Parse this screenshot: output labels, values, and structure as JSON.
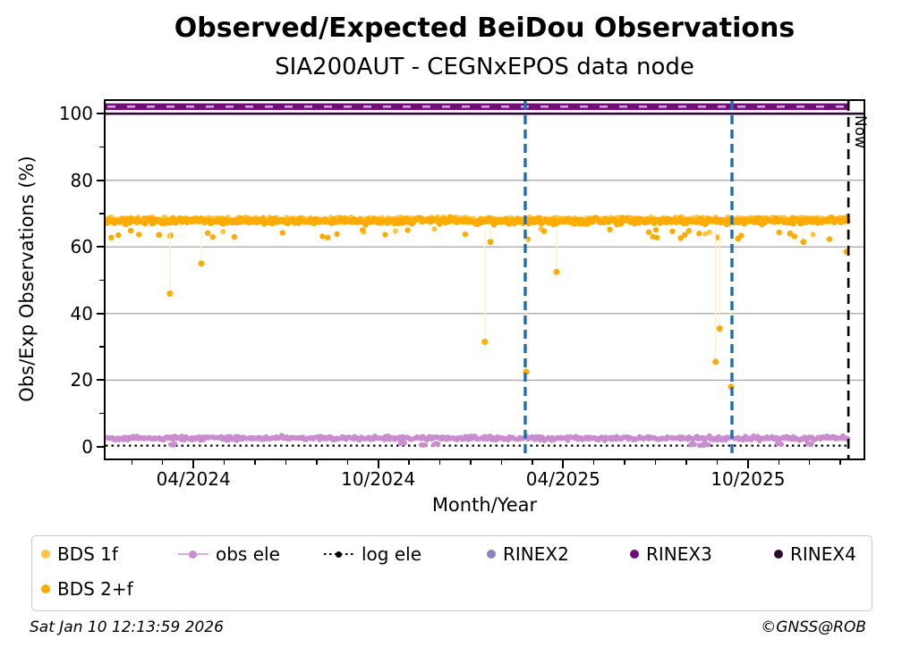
{
  "header": {
    "title": "Observed/Expected BeiDou Observations",
    "subtitle": "SIA200AUT - CEGNxEPOS data node"
  },
  "footer": {
    "timestamp": "Sat Jan 10 12:13:59 2026",
    "credit": "©GNSS@ROB"
  },
  "now_label": "Now",
  "colors": {
    "bds_1f": "#FFC540",
    "bds_2f": "#FFAB00",
    "obs_ele": "#C88CCF",
    "log_ele": "#000000",
    "rinex2": "#8C82C6",
    "rinex2_dash": "#CFA3D6",
    "rinex3": "#730B78",
    "rinex4": "#2E0A30",
    "event_line": "#1D6EB5",
    "now_line": "#000000",
    "grid": "#ABABAB",
    "dropline": "#FFEFC4"
  },
  "chart_data": {
    "type": "scatter",
    "title": "Observed/Expected BeiDou Observations",
    "subtitle": "SIA200AUT - CEGNxEPOS data node",
    "xlabel": "Month/Year",
    "ylabel": "Obs/Exp Observations (%)",
    "x_unit": "months since 2024-01-01",
    "xlim": [
      0.15,
      24.75
    ],
    "ylim": [
      -3.5,
      103.8
    ],
    "grid": "horizontal-only",
    "grid_y_values": [
      20,
      40,
      60,
      80
    ],
    "y_major_ticks": [
      0,
      20,
      40,
      60,
      80,
      100
    ],
    "y_tick_labels": [
      "0",
      "20",
      "40",
      "60",
      "80",
      "100"
    ],
    "y_minor_ticks": [
      10,
      30,
      50,
      70,
      90
    ],
    "x_major_ticks": [
      {
        "t": 3,
        "label": "04/2024"
      },
      {
        "t": 9,
        "label": "10/2024"
      },
      {
        "t": 15,
        "label": "04/2025"
      },
      {
        "t": 21,
        "label": "10/2025"
      }
    ],
    "x_minor_tick_step_months": 1,
    "now_line_t": 24.26,
    "event_lines_t": [
      13.77,
      20.48
    ],
    "legend_position": "below",
    "series": [
      {
        "name": "BDS 1f",
        "kind": "scatter-band",
        "color_key": "bds_1f",
        "range_t": [
          0.2,
          24.26
        ],
        "band_mean": 68.2,
        "band_spread": 1.1,
        "low_straggler_rate": 0.02
      },
      {
        "name": "BDS 2+f",
        "kind": "scatter-band",
        "color_key": "bds_2f",
        "range_t": [
          0.2,
          24.26
        ],
        "band_mean": 67.8,
        "band_spread": 1.3,
        "low_straggler_rate": 0.045,
        "outliers_t_value": [
          [
            2.24,
            46.0
          ],
          [
            3.26,
            55.0
          ],
          [
            12.46,
            31.5
          ],
          [
            12.64,
            61.5
          ],
          [
            13.8,
            22.5
          ],
          [
            14.79,
            52.5
          ],
          [
            19.95,
            25.5
          ],
          [
            20.08,
            35.5
          ],
          [
            20.45,
            18.0
          ],
          [
            20.68,
            62.5
          ],
          [
            22.37,
            64.0
          ],
          [
            22.8,
            61.5
          ],
          [
            24.2,
            58.5
          ]
        ]
      },
      {
        "name": "obs ele",
        "kind": "scatter-band",
        "color_key": "obs_ele",
        "range_t": [
          0.2,
          24.26
        ],
        "band_mean": 2.6,
        "band_spread": 0.9,
        "dips_t_value": [
          [
            2.33,
            0.5
          ],
          [
            9.79,
            0.8
          ],
          [
            10.46,
            0.4
          ],
          [
            10.87,
            0.6
          ],
          [
            19.2,
            0.5
          ],
          [
            19.5,
            0.4
          ],
          [
            19.65,
            0.6
          ],
          [
            22.02,
            0.7
          ],
          [
            23.0,
            0.5
          ]
        ]
      },
      {
        "name": "log ele",
        "kind": "dotted-line",
        "color_key": "log_ele",
        "value": 0.35
      },
      {
        "name": "RINEX2",
        "kind": "dashed-overlay-line",
        "color_key": "rinex2",
        "value": 102.1
      },
      {
        "name": "RINEX3",
        "kind": "thick-line",
        "color_key": "rinex3",
        "value": 102.1
      },
      {
        "name": "RINEX4",
        "kind": "line",
        "color_key": "rinex4",
        "value": 100.0
      }
    ]
  },
  "legend": {
    "row1": [
      "BDS 1f",
      "obs ele",
      "log ele",
      "RINEX2",
      "RINEX3",
      "RINEX4"
    ],
    "row2": [
      "BDS 2+f"
    ]
  }
}
